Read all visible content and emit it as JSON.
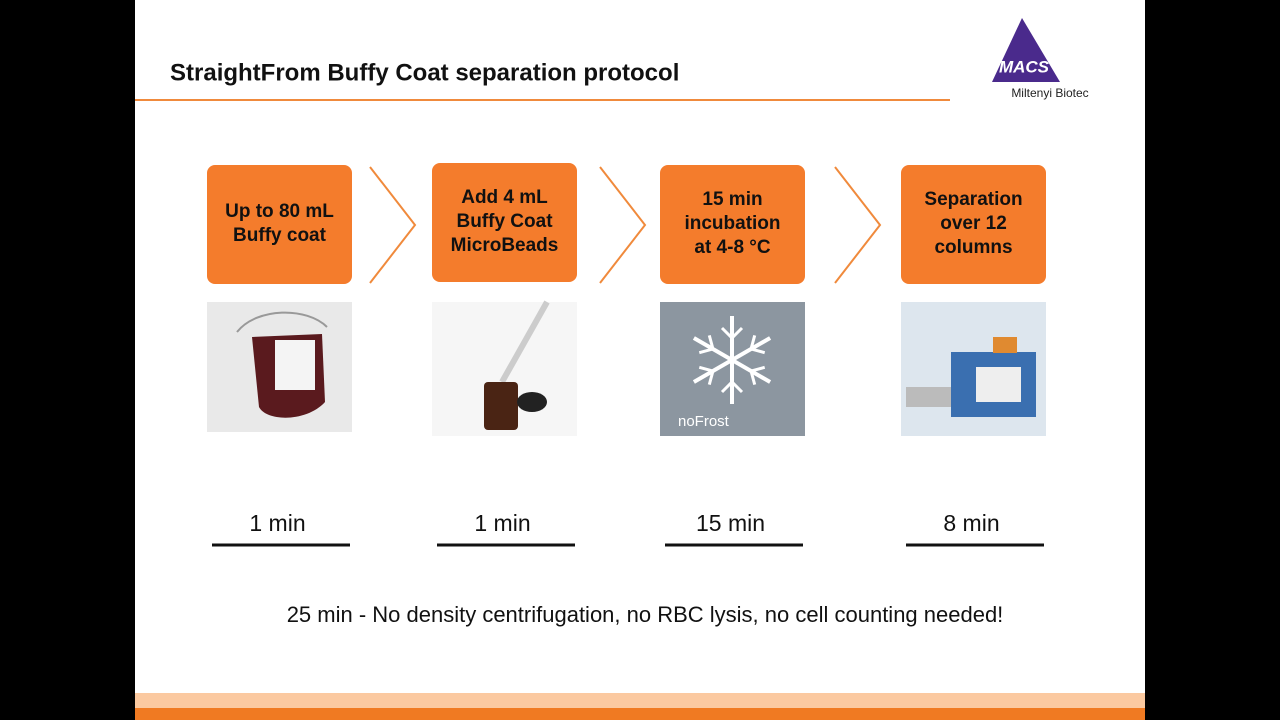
{
  "header": {
    "title": "StraightFrom Buffy Coat separation protocol"
  },
  "logo": {
    "mark": "MACS",
    "company": "Miltenyi Biotec"
  },
  "steps": [
    {
      "lines": [
        "Up to 80 mL",
        "Buffy coat"
      ],
      "time": "1 min"
    },
    {
      "lines": [
        "Add 4 mL",
        "Buffy Coat",
        "MicroBeads"
      ],
      "time": "1 min"
    },
    {
      "lines": [
        "15 min",
        "incubation",
        "at 4-8 °C"
      ],
      "image_caption": "noFrost",
      "time": "15 min"
    },
    {
      "lines": [
        "Separation",
        "over 12",
        "columns"
      ],
      "time": "8 min"
    }
  ],
  "summary": "25 min - No density centrifugation, no RBC lysis, no cell counting needed!"
}
